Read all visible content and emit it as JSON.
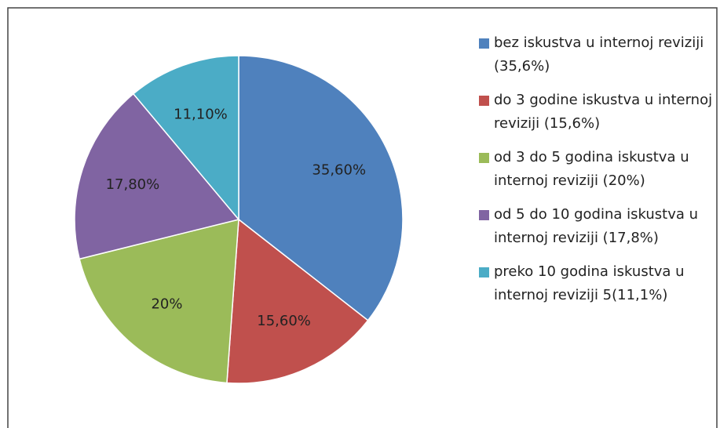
{
  "chart_data": {
    "type": "pie",
    "categories": [
      "bez iskustva u internoj reviziji (35,6%)",
      "do 3 godine iskustva u internoj reviziji (15,6%)",
      "od 3 do 5 godina iskustva u internoj reviziji (20%)",
      "od 5 do 10 godina iskustva u internoj reviziji (17,8%)",
      "preko 10 godina iskustva u internoj reviziji 5(11,1%)"
    ],
    "values": [
      35.6,
      15.6,
      20,
      17.8,
      11.1
    ],
    "value_labels": [
      "35,60%",
      "15,60%",
      "20%",
      "17,80%",
      "11,10%"
    ],
    "colors": [
      "#4f81bd",
      "#c0504d",
      "#9bbb59",
      "#8064a2",
      "#4bacc6"
    ],
    "legend": "right"
  }
}
